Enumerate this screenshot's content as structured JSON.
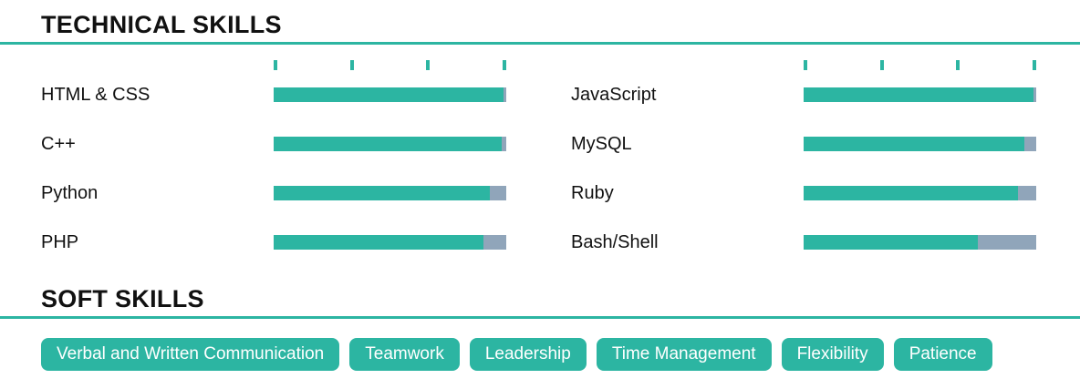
{
  "colors": {
    "accent": "#2cb5a2",
    "bar_remainder": "#90a5ba",
    "heading_text": "#111111",
    "tag_text": "#ffffff"
  },
  "technical_skills": {
    "title": "TECHNICAL SKILLS",
    "scale_ticks_per_bar": 4,
    "columns": [
      {
        "items": [
          {
            "label": "HTML & CSS",
            "percent": 99
          },
          {
            "label": "C++",
            "percent": 98
          },
          {
            "label": "Python",
            "percent": 93
          },
          {
            "label": "PHP",
            "percent": 90
          }
        ]
      },
      {
        "items": [
          {
            "label": "JavaScript",
            "percent": 99
          },
          {
            "label": "MySQL",
            "percent": 95
          },
          {
            "label": "Ruby",
            "percent": 92
          },
          {
            "label": "Bash/Shell",
            "percent": 75
          }
        ]
      }
    ]
  },
  "soft_skills": {
    "title": "SOFT SKILLS",
    "tags": [
      "Verbal and Written Communication",
      "Teamwork",
      "Leadership",
      "Time Management",
      "Flexibility",
      "Patience"
    ]
  }
}
